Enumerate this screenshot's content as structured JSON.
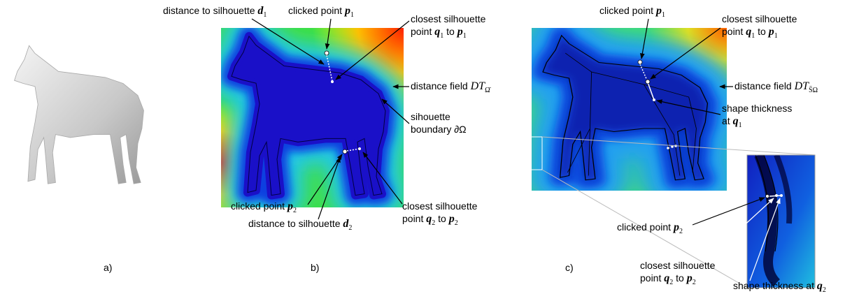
{
  "panel_a": {
    "label": "a)"
  },
  "panel_b": {
    "label": "b)",
    "annotations": [
      {
        "lines": [
          [
            "distance to silhouette ",
            {
              "sym": "d",
              "sub": "1"
            }
          ]
        ]
      },
      {
        "lines": [
          [
            "clicked point ",
            {
              "sym": "p",
              "sub": "1"
            }
          ]
        ]
      },
      {
        "lines": [
          [
            "closest silhouette"
          ],
          [
            "point ",
            {
              "sym": "q",
              "sub": "1"
            },
            " to ",
            {
              "sym": "p",
              "sub": "1"
            }
          ]
        ]
      },
      {
        "lines": [
          [
            "distance field ",
            {
              "math": "DT",
              "sub": "Ω̄"
            }
          ]
        ]
      },
      {
        "lines": [
          [
            "sihouette"
          ],
          [
            "boundary ∂Ω"
          ]
        ]
      },
      {
        "lines": [
          [
            "clicked point ",
            {
              "sym": "p",
              "sub": "2"
            }
          ]
        ]
      },
      {
        "lines": [
          [
            "distance to silhouette ",
            {
              "sym": "d",
              "sub": "2"
            }
          ]
        ]
      },
      {
        "lines": [
          [
            "closest silhouette"
          ],
          [
            "point ",
            {
              "sym": "q",
              "sub": "2"
            },
            " to ",
            {
              "sym": "p",
              "sub": "2"
            }
          ]
        ]
      }
    ]
  },
  "panel_c": {
    "label": "c)",
    "annotations": [
      {
        "lines": [
          [
            "clicked point ",
            {
              "sym": "p",
              "sub": "1"
            }
          ]
        ]
      },
      {
        "lines": [
          [
            "closest silhouette"
          ],
          [
            "point ",
            {
              "sym": "q",
              "sub": "1"
            },
            " to ",
            {
              "sym": "p",
              "sub": "1"
            }
          ]
        ]
      },
      {
        "lines": [
          [
            "distance field ",
            {
              "math": "DT",
              "sub": "S̄Ω"
            }
          ]
        ]
      },
      {
        "lines": [
          [
            "shape thickness"
          ],
          [
            "at ",
            {
              "sym": "q",
              "sub": "1"
            }
          ]
        ]
      },
      {
        "lines": [
          [
            "clicked point ",
            {
              "sym": "p",
              "sub": "2"
            }
          ]
        ]
      },
      {
        "lines": [
          [
            "closest silhouette"
          ],
          [
            "point ",
            {
              "sym": "q",
              "sub": "2"
            },
            " to ",
            {
              "sym": "p",
              "sub": "2"
            }
          ]
        ]
      },
      {
        "lines": [
          [
            "shape thickness at ",
            {
              "sym": "q",
              "sub": "2"
            }
          ]
        ]
      }
    ]
  }
}
